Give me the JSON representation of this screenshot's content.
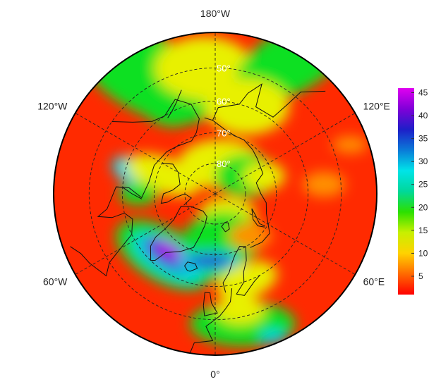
{
  "map": {
    "projection": "north-polar-stereographic",
    "longitude_labels": [
      {
        "lon": 180,
        "label": "180°W"
      },
      {
        "lon": -120,
        "label": "120°W"
      },
      {
        "lon": 120,
        "label": "120°E"
      },
      {
        "lon": -60,
        "label": "60°W"
      },
      {
        "lon": 60,
        "label": "60°E"
      },
      {
        "lon": 0,
        "label": "0°"
      }
    ],
    "latitude_circles": [
      {
        "lat": 50,
        "label": "50°"
      },
      {
        "lat": 60,
        "label": "60°"
      },
      {
        "lat": 70,
        "label": "70°"
      },
      {
        "lat": 80,
        "label": "80°"
      }
    ],
    "meridians": [
      0,
      60,
      120,
      180,
      -60,
      -120
    ],
    "outer_latitude": 40,
    "gridline_style": "dashed",
    "field_colors": {
      "high_max": "#b000e8",
      "high": "#2030d0",
      "mid": "#00d8e0",
      "green": "#10e020",
      "yellow": "#e8f000",
      "orange": "#ff9000",
      "low": "#ff2a00"
    }
  },
  "colorbar": {
    "min": 1,
    "max": 46,
    "ticks": [
      5,
      10,
      15,
      20,
      25,
      30,
      35,
      40,
      45
    ],
    "colors": [
      "#ff0000",
      "#ff6a00",
      "#ffd200",
      "#c8f000",
      "#2ce000",
      "#00d89a",
      "#00e4e8",
      "#0a7ad8",
      "#1e1ec8",
      "#8000d8",
      "#e000f0"
    ]
  }
}
